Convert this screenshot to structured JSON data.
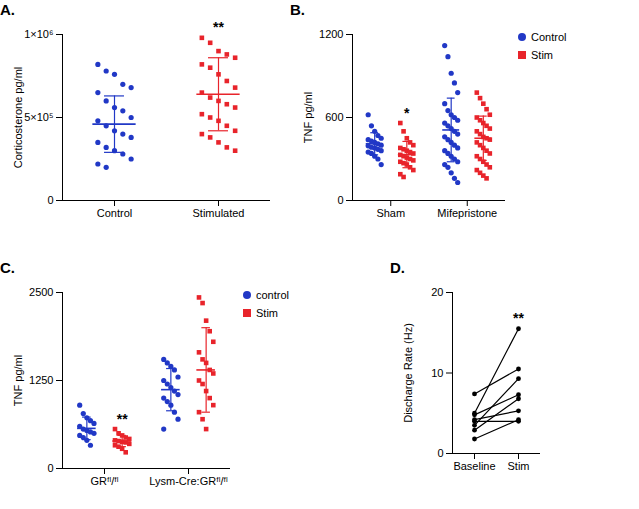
{
  "chart_data": [
    {
      "type": "scatter",
      "title": "A.",
      "y_label": "Corticosterone pg/ml",
      "categories": [
        "Control",
        "Stimulated"
      ],
      "ylim": [
        0,
        1000000
      ],
      "yticks": [
        0,
        {
          "value": 500000,
          "label": "5×10⁵"
        },
        {
          "value": 1000000,
          "label": "1×10⁶"
        }
      ],
      "series": [
        {
          "color": "#2138c6",
          "marker": "circle",
          "values": [
            [
              820000,
              780000,
              760000,
              700000,
              680000,
              650000,
              600000,
              560000,
              540000,
              500000,
              480000,
              450000,
              420000,
              400000,
              380000,
              350000,
              320000,
              300000,
              280000,
              250000,
              220000,
              200000
            ],
            []
          ],
          "mean": [
            460000,
            null
          ],
          "sd": [
            170000,
            null
          ]
        },
        {
          "color": "#e8242b",
          "marker": "square",
          "values": [
            [],
            [
              980000,
              950000,
              900000,
              880000,
              860000,
              820000,
              800000,
              760000,
              720000,
              680000,
              650000,
              620000,
              600000,
              580000,
              560000,
              520000,
              500000,
              480000,
              450000,
              420000,
              400000,
              380000,
              350000,
              320000,
              300000
            ]
          ],
          "mean": [
            null,
            640000
          ],
          "sd": [
            null,
            220000
          ]
        }
      ],
      "annotations": [
        {
          "text": "**",
          "category": "Stimulated"
        }
      ]
    },
    {
      "type": "scatter",
      "title": "B.",
      "y_label": "TNF pg/ml",
      "categories": [
        "Sham",
        "Mifepristone"
      ],
      "ylim": [
        0,
        1200
      ],
      "yticks": [
        0,
        600,
        1200
      ],
      "legend": "right",
      "series": [
        {
          "name": "Control",
          "color": "#2138c6",
          "marker": "circle",
          "values": [
            [
              620,
              540,
              500,
              470,
              450,
              440,
              430,
              420,
              410,
              400,
              395,
              385,
              380,
              370,
              360,
              350,
              340,
              320,
              300,
              260
            ],
            [
              1120,
              1040,
              920,
              850,
              780,
              700,
              650,
              620,
              600,
              580,
              560,
              540,
              520,
              500,
              480,
              460,
              440,
              420,
              400,
              380,
              360,
              340,
              320,
              300,
              280,
              260,
              240,
              200,
              160,
              130
            ]
          ],
          "mean": [
            410,
            510
          ],
          "sd": [
            80,
            230
          ]
        },
        {
          "name": "Stim",
          "color": "#e8242b",
          "marker": "square",
          "values": [
            [
              560,
              500,
              450,
              420,
              400,
              380,
              370,
              360,
              350,
              340,
              330,
              320,
              310,
              300,
              290,
              280,
              270,
              260,
              240,
              220,
              190,
              170
            ],
            [
              780,
              740,
              700,
              660,
              620,
              600,
              580,
              560,
              540,
              520,
              500,
              480,
              460,
              450,
              440,
              420,
              400,
              380,
              360,
              340,
              320,
              300,
              280,
              260,
              240,
              220,
              200,
              180,
              160
            ]
          ],
          "mean": [
            332,
            450
          ],
          "sd": [
            95,
            160
          ]
        }
      ],
      "annotations": [
        {
          "text": "*",
          "category": "Sham",
          "series": "Stim"
        }
      ]
    },
    {
      "type": "scatter",
      "title": "C.",
      "y_label": "TNF pg/ml",
      "categories": [
        "GRᶠˡ/ᶠˡ",
        "Lysm-Cre:GRᶠˡ/ᶠˡ"
      ],
      "ylim": [
        0,
        2500
      ],
      "yticks": [
        0,
        1250,
        2500
      ],
      "legend": "right",
      "series": [
        {
          "name": "control",
          "color": "#2138c6",
          "marker": "circle",
          "values": [
            [
              900,
              780,
              720,
              680,
              640,
              600,
              560,
              540,
              520,
              500,
              470,
              440,
              400,
              330
            ],
            [
              1550,
              1500,
              1450,
              1400,
              1300,
              1250,
              1200,
              1150,
              1100,
              1050,
              1000,
              950,
              900,
              800,
              700,
              560
            ]
          ],
          "mean": [
            570,
            1120
          ],
          "sd": [
            160,
            300
          ]
        },
        {
          "name": "Stim",
          "color": "#e8242b",
          "marker": "square",
          "values": [
            [
              560,
              500,
              470,
              440,
              420,
              400,
              390,
              380,
              370,
              350,
              330,
              310,
              280,
              230
            ],
            [
              2430,
              2350,
              2100,
              1950,
              1800,
              1650,
              1550,
              1500,
              1400,
              1350,
              1250,
              1200,
              1100,
              1000,
              900,
              800,
              700,
              560
            ]
          ],
          "mean": [
            390,
            1400
          ],
          "sd": [
            80,
            600
          ]
        }
      ],
      "annotations": [
        {
          "text": "**",
          "category": "GRᶠˡ/ᶠˡ",
          "series": "Stim"
        }
      ]
    },
    {
      "type": "line",
      "title": "D.",
      "y_label": "Discharge Rate (Hz)",
      "categories": [
        "Baseline",
        "Stim"
      ],
      "ylim": [
        0,
        20
      ],
      "yticks": [
        0,
        10,
        20
      ],
      "series": [
        {
          "color": "#000000",
          "marker": "circle",
          "values": [
            7.4,
            10.5
          ]
        },
        {
          "color": "#000000",
          "marker": "circle",
          "values": [
            5.0,
            15.5
          ]
        },
        {
          "color": "#000000",
          "marker": "circle",
          "values": [
            4.8,
            7.3
          ]
        },
        {
          "color": "#000000",
          "marker": "circle",
          "values": [
            4.2,
            5.3
          ]
        },
        {
          "color": "#000000",
          "marker": "circle",
          "values": [
            4.0,
            4.0
          ]
        },
        {
          "color": "#000000",
          "marker": "circle",
          "values": [
            3.5,
            9.3
          ]
        },
        {
          "color": "#000000",
          "marker": "circle",
          "values": [
            2.9,
            6.8
          ]
        },
        {
          "color": "#000000",
          "marker": "circle",
          "values": [
            1.8,
            4.2
          ]
        }
      ],
      "annotations": [
        {
          "text": "**",
          "category": "Stim"
        }
      ]
    }
  ]
}
